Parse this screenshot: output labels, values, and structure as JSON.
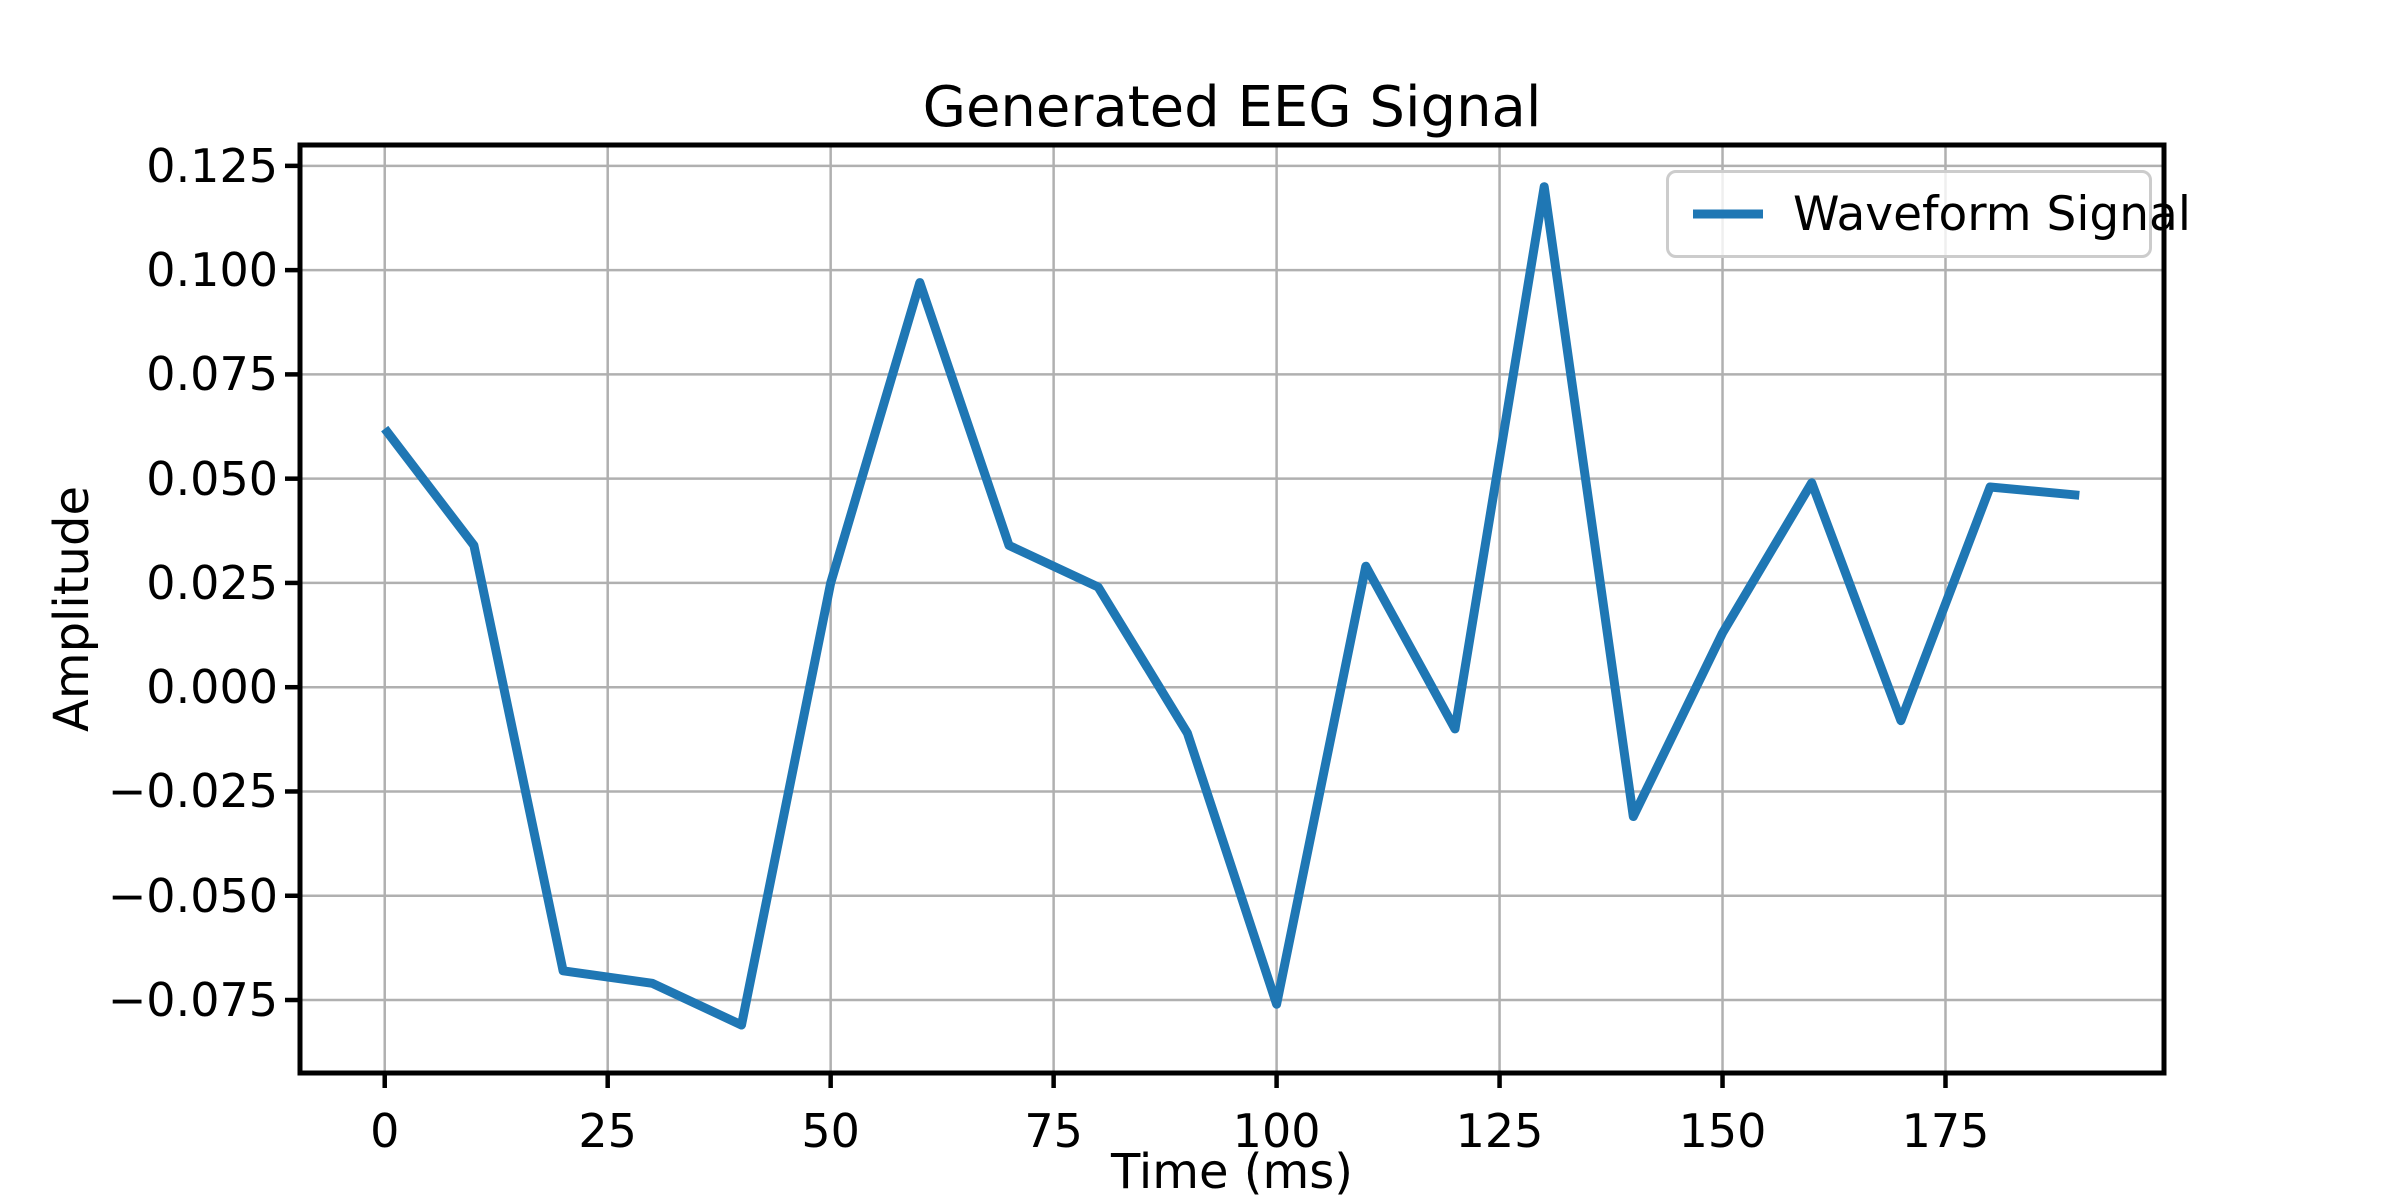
{
  "chart_data": {
    "type": "line",
    "title": "Generated EEG Signal",
    "xlabel": "Time (ms)",
    "ylabel": "Amplitude",
    "x": [
      0,
      10,
      20,
      30,
      40,
      50,
      60,
      70,
      80,
      90,
      100,
      110,
      120,
      130,
      140,
      150,
      160,
      170,
      180,
      190
    ],
    "series": [
      {
        "name": "Waveform Signal",
        "color": "#1f77b4",
        "values": [
          0.062,
          0.034,
          -0.068,
          -0.071,
          -0.081,
          0.025,
          0.097,
          0.034,
          0.024,
          -0.011,
          -0.076,
          0.029,
          -0.01,
          0.12,
          -0.031,
          0.013,
          0.049,
          -0.008,
          0.048,
          0.046
        ]
      }
    ],
    "xlim": [
      -9.5,
      199.5
    ],
    "ylim": [
      -0.0925,
      0.13
    ],
    "xticks": [
      0,
      25,
      50,
      75,
      100,
      125,
      150,
      175
    ],
    "yticks": [
      0.125,
      0.1,
      0.075,
      0.05,
      0.025,
      0.0,
      -0.025,
      -0.05,
      -0.075
    ],
    "xtick_labels": [
      "0",
      "25",
      "50",
      "75",
      "100",
      "125",
      "150",
      "175"
    ],
    "ytick_labels": [
      "0.125",
      "0.100",
      "0.075",
      "0.050",
      "0.025",
      "0.000",
      "−0.025",
      "−0.050",
      "−0.075"
    ],
    "grid": true,
    "legend": {
      "label": "Waveform Signal",
      "position": "upper right"
    },
    "colors": {
      "line": "#1f77b4",
      "grid": "#b0b0b0",
      "spine": "#000000",
      "text": "#000000",
      "legend_border": "#cccccc",
      "background": "#ffffff"
    }
  }
}
